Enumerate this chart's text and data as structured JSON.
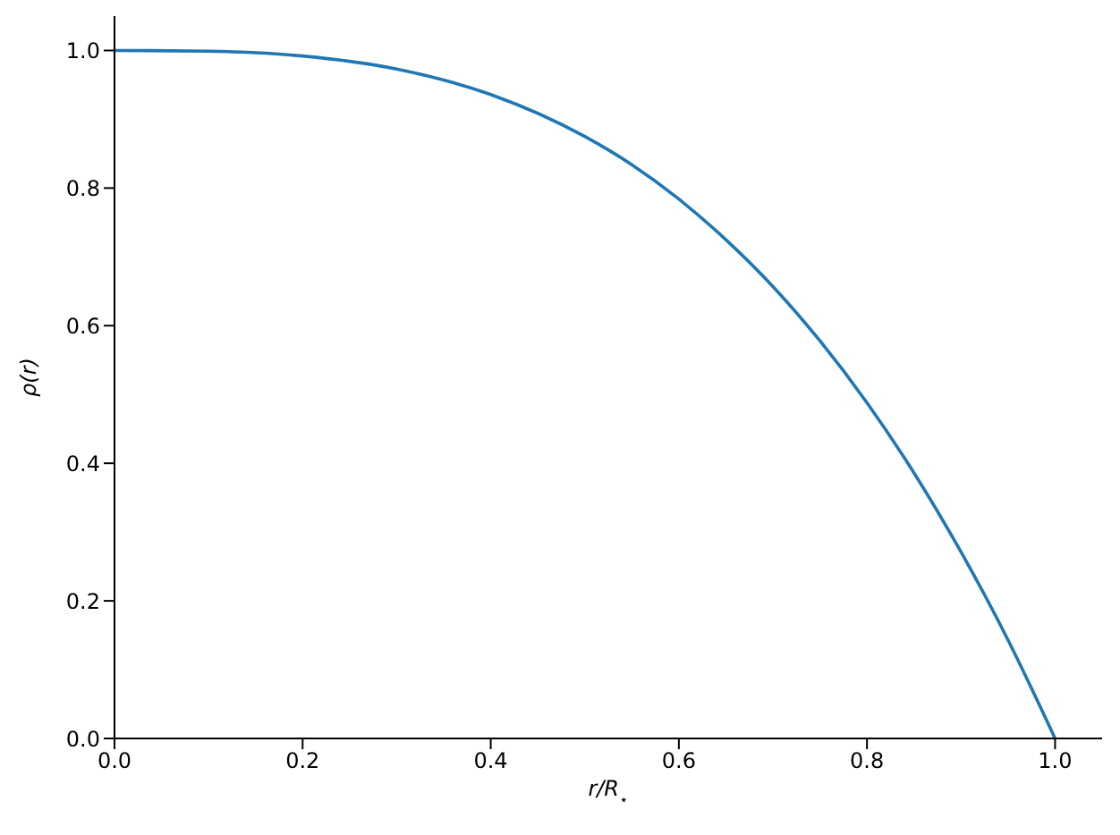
{
  "chart_data": {
    "type": "line",
    "xlabel": "r/R$_{⋆}$",
    "ylabel": "ρ(r)",
    "x": [
      0,
      0.1,
      0.2,
      0.3,
      0.4,
      0.5,
      0.55,
      0.6,
      0.65,
      0.7,
      0.75,
      0.8,
      0.85,
      0.9,
      0.95,
      1.0
    ],
    "series": [
      {
        "color": "#1f77b4",
        "values": [
          1.0,
          0.999,
          0.992,
          0.973,
          0.936,
          0.875,
          0.834,
          0.784,
          0.725,
          0.657,
          0.578,
          0.488,
          0.386,
          0.271,
          0.143,
          0.0
        ]
      }
    ],
    "xlim": [
      0,
      1.05
    ],
    "ylim": [
      0,
      1.05
    ],
    "xticks": [
      {
        "value": 0,
        "label": "0.0"
      },
      0.2,
      0.4,
      0.6,
      0.8,
      {
        "value": 1,
        "label": "1.0"
      }
    ],
    "yticks": [
      {
        "value": 0,
        "label": "0.0"
      },
      0.2,
      0.4,
      0.6,
      0.8,
      {
        "value": 1,
        "label": "1.0"
      }
    ],
    "grid": false,
    "legend": false,
    "marker": "none",
    "line_style": "solid"
  }
}
